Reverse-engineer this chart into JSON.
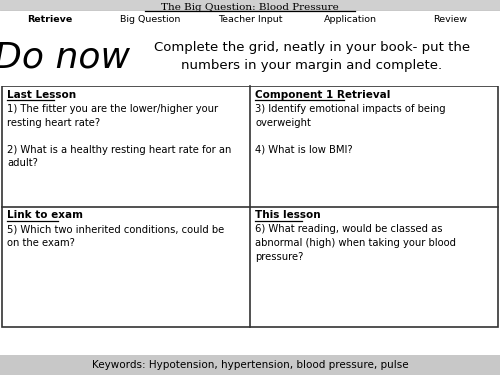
{
  "title": "The Big Question: Blood Pressure",
  "nav_tabs": [
    "Retrieve",
    "Big Question",
    "Teacher Input",
    "Application",
    "Review"
  ],
  "active_tab": 0,
  "active_tab_color": "#7fb3d3",
  "tab_border_color": "#555555",
  "do_now_text": "Do now",
  "instruction_text": "Complete the grid, neatly in your book- put the\nnumbers in your margin and complete.",
  "instruction_box_color": "#a8c4de",
  "grid_cells": [
    {
      "col": 0,
      "row": 0,
      "header": "Last Lesson",
      "body": "1) The fitter you are the lower/higher your\nresting heart rate?\n\n2) What is a healthy resting heart rate for an\nadult?"
    },
    {
      "col": 1,
      "row": 0,
      "header": "Component 1 Retrieval",
      "body": "3) Identify emotional impacts of being\noverweight\n\n4) What is low BMI?"
    },
    {
      "col": 0,
      "row": 1,
      "header": "Link to exam",
      "body": "5) Which two inherited conditions, could be\non the exam?"
    },
    {
      "col": 1,
      "row": 1,
      "header": "This lesson",
      "body": "6) What reading, would be classed as\nabnormal (high) when taking your blood\npressure?"
    }
  ],
  "keywords": "Keywords: Hypotension, hypertension, blood pressure, pulse",
  "bg_color": "#ffffff",
  "header_bg_color": "#d0d0d0",
  "footer_color": "#c8c8c8",
  "grid_border_color": "#333333",
  "text_color": "#111111"
}
